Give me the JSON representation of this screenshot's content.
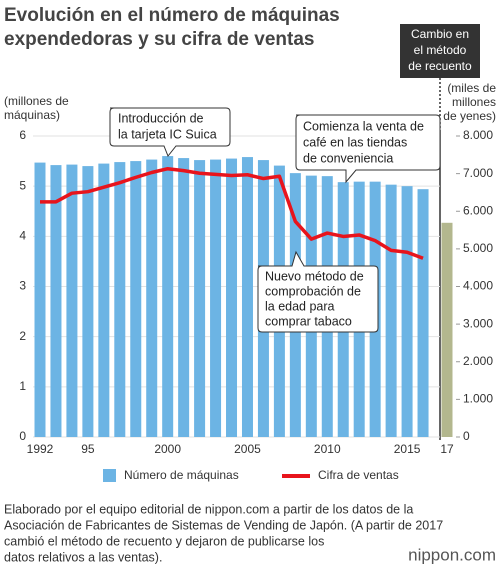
{
  "chart_data": {
    "type": "bar",
    "title": [
      "Evolución en el número de máquinas",
      "expendedoras y su cifra de ventas"
    ],
    "ylabel": [
      "(millones de",
      "máquinas)"
    ],
    "y2label": [
      "(miles de",
      "millones",
      "de yenes)"
    ],
    "categories": [
      "1992",
      null,
      null,
      "95",
      null,
      null,
      null,
      null,
      "2000",
      null,
      null,
      null,
      null,
      "2005",
      null,
      null,
      null,
      null,
      "2010",
      null,
      null,
      null,
      null,
      "2015",
      null,
      "17"
    ],
    "series": [
      {
        "name": "Número de máquinas",
        "type": "bar",
        "color": "#6cb4e4",
        "colors": [
          "#6cb4e4",
          "#6cb4e4",
          "#6cb4e4",
          "#6cb4e4",
          "#6cb4e4",
          "#6cb4e4",
          "#6cb4e4",
          "#6cb4e4",
          "#6cb4e4",
          "#6cb4e4",
          "#6cb4e4",
          "#6cb4e4",
          "#6cb4e4",
          "#6cb4e4",
          "#6cb4e4",
          "#6cb4e4",
          "#6cb4e4",
          "#6cb4e4",
          "#6cb4e4",
          "#6cb4e4",
          "#6cb4e4",
          "#6cb4e4",
          "#6cb4e4",
          "#6cb4e4",
          "#6cb4e4",
          "#b3b78e"
        ],
        "values": [
          5.47,
          5.42,
          5.43,
          5.4,
          5.45,
          5.48,
          5.5,
          5.53,
          5.6,
          5.56,
          5.52,
          5.53,
          5.55,
          5.58,
          5.52,
          5.41,
          5.26,
          5.21,
          5.2,
          5.08,
          5.09,
          5.09,
          5.03,
          5.0,
          4.94,
          4.27
        ]
      },
      {
        "name": "Cifra de ventas",
        "type": "line",
        "color": "#e8141c",
        "axis": "y2",
        "values": [
          6250,
          6250,
          6480,
          6520,
          6640,
          6760,
          6900,
          7030,
          7130,
          7080,
          7010,
          6980,
          6950,
          6970,
          6870,
          6930,
          5730,
          5260,
          5420,
          5330,
          5370,
          5220,
          4960,
          4910,
          4750,
          null
        ]
      }
    ],
    "ylim": [
      0,
      6
    ],
    "yticks": [
      0,
      1,
      2,
      3,
      4,
      5,
      6
    ],
    "y2lim": [
      0,
      8000
    ],
    "y2ticks": [
      0,
      {
        "value": 1000,
        "label": "1.000"
      },
      {
        "value": 2000,
        "label": "2.000"
      },
      {
        "value": 3000,
        "label": "3.000"
      },
      {
        "value": 4000,
        "label": "4.000"
      },
      {
        "value": 5000,
        "label": "5.000"
      },
      {
        "value": 6000,
        "label": "6.000"
      },
      {
        "value": 7000,
        "label": "7.000"
      },
      {
        "value": 8000,
        "label": "8.000"
      }
    ],
    "grid": true,
    "annotations": [
      {
        "text": [
          "Introducción de",
          "la tarjeta IC Suica"
        ]
      },
      {
        "text": [
          "Comienza la venta de",
          "café en las tiendas",
          "de conveniencia"
        ]
      },
      {
        "text": [
          "Nuevo método de",
          "comprobación de",
          "la edad para",
          "comprar tabaco"
        ]
      },
      {
        "text": [
          "Cambio en",
          "el método",
          "de recuento"
        ]
      }
    ],
    "source": [
      "Elaborado por el equipo editorial de nippon.com a partir de los datos de la",
      "Asociación de Fabricantes de Sistemas de Vending de Japón. (A partir de 2017",
      "cambió el método de recuento y dejaron de publicarse los",
      "datos relativos a las ventas)."
    ],
    "logo": "nippon.com"
  }
}
